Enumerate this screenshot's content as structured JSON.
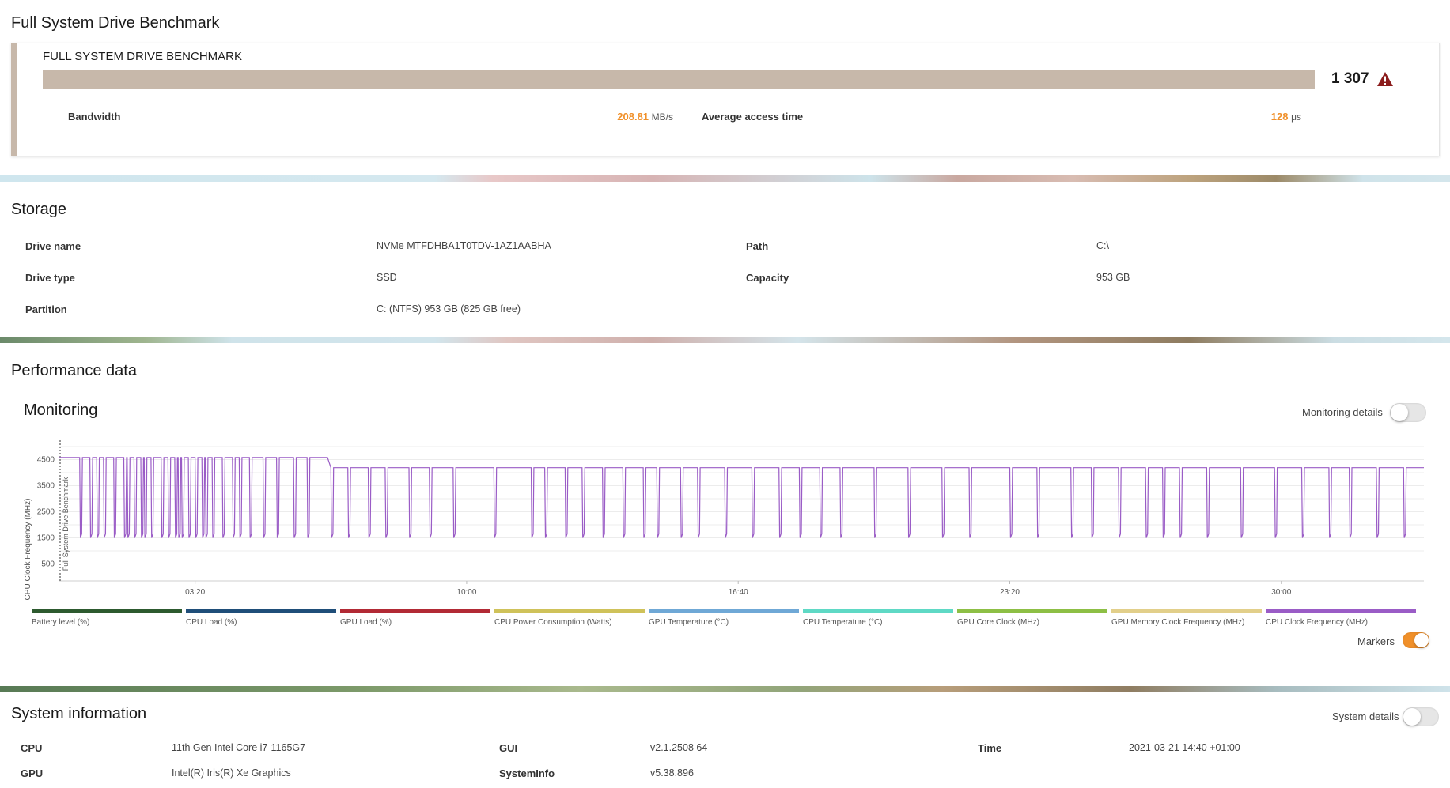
{
  "benchmark": {
    "section_title": "Full System Drive Benchmark",
    "card_title": "FULL SYSTEM DRIVE BENCHMARK",
    "score": "1 307",
    "warning_icon": "warning-triangle-icon",
    "bandwidth_label": "Bandwidth",
    "bandwidth_value": "208.81",
    "bandwidth_unit": "MB/s",
    "access_label": "Average access time",
    "access_value": "128",
    "access_unit": "μs",
    "accent_color": "#f0902a",
    "bar_color": "#c7b8aa"
  },
  "storage": {
    "title": "Storage",
    "rows": [
      {
        "label": "Drive name",
        "value": "NVMe MTFDHBA1T0TDV-1AZ1AABHA",
        "label2": "Path",
        "value2": "C:\\"
      },
      {
        "label": "Drive type",
        "value": "SSD",
        "label2": "Capacity",
        "value2": "953 GB"
      },
      {
        "label": "Partition",
        "value": "C: (NTFS) 953 GB (825 GB free)",
        "label2": "",
        "value2": ""
      }
    ]
  },
  "performance": {
    "title": "Performance data",
    "monitoring_title": "Monitoring",
    "monitoring_details_label": "Monitoring details",
    "markers_label": "Markers",
    "legend": [
      {
        "label": "Battery level (%)",
        "color": "#2d5a2f"
      },
      {
        "label": "CPU Load (%)",
        "color": "#1f4e79"
      },
      {
        "label": "GPU Load (%)",
        "color": "#b22a35"
      },
      {
        "label": "CPU Power Consumption (Watts)",
        "color": "#cfc25a"
      },
      {
        "label": "GPU Temperature (°C)",
        "color": "#6fa8d6"
      },
      {
        "label": "CPU Temperature (°C)",
        "color": "#5fd9c5"
      },
      {
        "label": "GPU Core Clock (MHz)",
        "color": "#8dbf45"
      },
      {
        "label": "GPU Memory Clock Frequency (MHz)",
        "color": "#e2cf8a"
      },
      {
        "label": "CPU Clock Frequency (MHz)",
        "color": "#9a5cc6"
      }
    ]
  },
  "chart_data": {
    "type": "line",
    "ylabel": "CPU Clock Frequency (MHz)",
    "marker_label": "Full System Drive Benchmark",
    "x_ticks": [
      "03:20",
      "10:00",
      "16:40",
      "23:20",
      "30:00"
    ],
    "y_ticks": [
      500,
      1500,
      2500,
      3500,
      4500
    ],
    "ylim": [
      0,
      5000
    ],
    "xlim_seconds": [
      0,
      2010
    ],
    "series": [
      {
        "name": "CPU Clock Frequency (MHz)",
        "color": "#9a5cc6",
        "baseline_mhz": 4190,
        "high_mhz": 4580,
        "low_mhz": 1500,
        "dip_times_s": [
          30,
          45,
          55,
          65,
          80,
          95,
          100,
          110,
          120,
          125,
          135,
          150,
          160,
          170,
          175,
          180,
          190,
          200,
          210,
          215,
          225,
          240,
          255,
          265,
          280,
          300,
          320,
          345,
          365,
          400,
          425,
          455,
          480,
          515,
          545,
          580,
          640,
          695,
          715,
          745,
          770,
          800,
          830,
          860,
          880,
          915,
          940,
          980,
          1020,
          1060,
          1090,
          1120,
          1150,
          1200,
          1250,
          1300,
          1340,
          1400,
          1440,
          1490,
          1520,
          1560,
          1600,
          1625,
          1650,
          1690,
          1740,
          1790,
          1830,
          1870,
          1900,
          1940,
          1980
        ]
      }
    ]
  },
  "system": {
    "title": "System information",
    "details_label": "System details",
    "rows": [
      {
        "label": "CPU",
        "value": "11th Gen Intel Core i7-1165G7",
        "label2": "GUI",
        "value2": "v2.1.2508 64",
        "label3": "Time",
        "value3": "2021-03-21 14:40 +01:00"
      },
      {
        "label": "GPU",
        "value": "Intel(R) Iris(R) Xe Graphics",
        "label2": "SystemInfo",
        "value2": "v5.38.896",
        "label3": "",
        "value3": ""
      }
    ]
  }
}
